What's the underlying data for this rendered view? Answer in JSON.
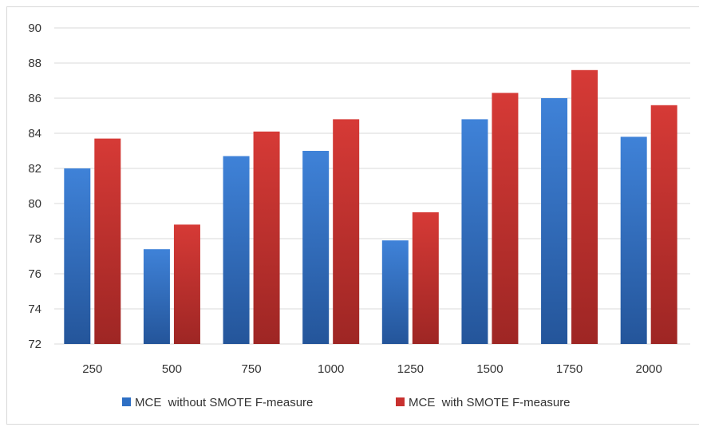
{
  "chart_data": {
    "type": "bar",
    "title": "",
    "xlabel": "",
    "ylabel": "",
    "categories": [
      "250",
      "500",
      "750",
      "1000",
      "1250",
      "1500",
      "1750",
      "2000"
    ],
    "series": [
      {
        "name": "MCE  without SMOTE F-measure",
        "color": "#2e6fc4",
        "values": [
          82.0,
          77.4,
          82.7,
          83.0,
          77.9,
          84.8,
          86.0,
          83.8
        ]
      },
      {
        "name": "MCE  with SMOTE F-measure",
        "color": "#c8312f",
        "values": [
          83.7,
          78.8,
          84.1,
          84.8,
          79.5,
          86.3,
          87.6,
          85.6
        ]
      }
    ],
    "ylim": [
      72,
      90
    ],
    "yticks": [
      72,
      74,
      76,
      78,
      80,
      82,
      84,
      86,
      88,
      90
    ],
    "grid": true,
    "legend_position": "bottom"
  }
}
